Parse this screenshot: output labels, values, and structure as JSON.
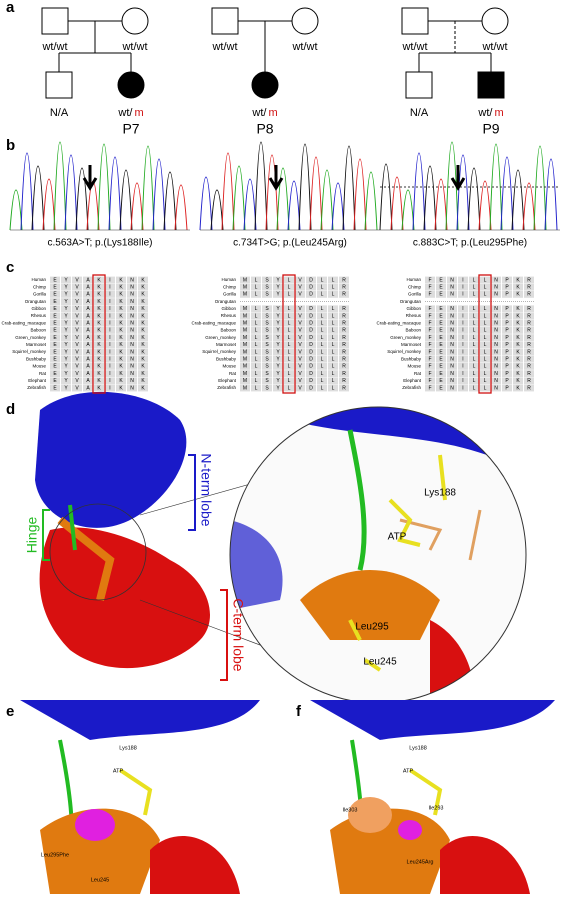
{
  "panel_labels": [
    "a",
    "b",
    "c",
    "d",
    "e",
    "f"
  ],
  "pedigrees": [
    {
      "parents": [
        "wt/wt",
        "wt/wt"
      ],
      "children": [
        {
          "shape": "square",
          "affected": false,
          "label": "N/A"
        },
        {
          "shape": "circle",
          "affected": true,
          "wt": "wt/",
          "m": "m"
        }
      ],
      "patient": "P7"
    },
    {
      "parents": [
        "wt/wt",
        "wt/wt"
      ],
      "children": [
        {
          "shape": "circle",
          "affected": true,
          "wt": "wt/",
          "m": "m"
        }
      ],
      "patient": "P8"
    },
    {
      "parents": [
        "wt/wt",
        "wt/wt"
      ],
      "children": [
        {
          "shape": "square",
          "affected": false,
          "label": "N/A"
        },
        {
          "shape": "square",
          "affected": true,
          "wt": "wt/",
          "m": "m"
        }
      ],
      "patient": "P9"
    }
  ],
  "chromatograms": [
    {
      "caption": "c.563A>T; p.(Lys188Ile)"
    },
    {
      "caption": "c.734T>G; p.(Leu245Arg)"
    },
    {
      "caption": "c.883C>T; p.(Leu295Phe)"
    }
  ],
  "species": [
    "Human",
    "Chimp",
    "Gorilla",
    "Orangutan",
    "Gibbon",
    "Rhesus",
    "Crab-eating_macaque",
    "Baboon",
    "Green_monkey",
    "Marmoset",
    "Squirrel_monkey",
    "Bushbaby",
    "Mouse",
    "Rat",
    "Elephant",
    "Zebrafish"
  ],
  "alignments": [
    {
      "residues": [
        "E",
        "Y",
        "V",
        "A",
        "K",
        "I",
        "K",
        "N",
        "K"
      ]
    },
    {
      "residues": [
        "M",
        "L",
        "S",
        "Y",
        "L",
        "V",
        "D",
        "L",
        "L",
        "R"
      ]
    },
    {
      "residues": [
        "F",
        "E",
        "N",
        "I",
        "L",
        "L",
        "N",
        "P",
        "K",
        "R"
      ]
    }
  ],
  "structure": {
    "domains": [
      "N-term lobe",
      "Hinge",
      "C-term lobe"
    ],
    "labels": [
      "Lys188",
      "ATP",
      "Leu295",
      "Leu245"
    ]
  },
  "panel_e": {
    "labels": [
      "Lys188",
      "ATP",
      "Leu295Phe",
      "Leu245"
    ]
  },
  "panel_f": {
    "labels": [
      "Lys188",
      "ATP",
      "Ile293",
      "Ile303",
      "Leu245Arg"
    ]
  }
}
